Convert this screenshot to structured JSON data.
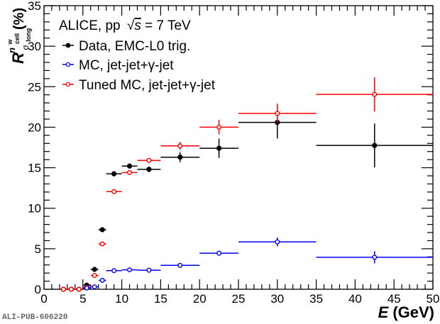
{
  "chart_data": {
    "type": "scatter",
    "title": "",
    "xlabel_var": "E",
    "xlabel_unit": "(GeV)",
    "ylabel_main": "R",
    "ylabel_sup": "n",
    "ylabel_sup_sup": "w",
    "ylabel_sup_sub": "cell",
    "ylabel_sub": "σ",
    "ylabel_sub_sub": "long",
    "ylabel_unit": "(%)",
    "xlim": [
      0,
      50
    ],
    "ylim": [
      0,
      35
    ],
    "xticks": [
      0,
      5,
      10,
      15,
      20,
      25,
      30,
      35,
      40,
      45,
      50
    ],
    "yticks": [
      0,
      5,
      10,
      15,
      20,
      25,
      30,
      35
    ],
    "x_minor_step": 1,
    "y_minor_step": 1,
    "grid": false,
    "legend_position": "top-left",
    "header": {
      "prefix": "ALICE, pp ",
      "sqrt": "√",
      "s": "s",
      "suffix": " = 7 TeV"
    },
    "series": [
      {
        "name": "Data, EMC-L0 trig.",
        "color": "#000000",
        "marker": "filled-circle",
        "points": [
          {
            "x": 2.5,
            "xerr": 0.5,
            "y": 0.0,
            "yerr": 0.05
          },
          {
            "x": 3.5,
            "xerr": 0.5,
            "y": 0.0,
            "yerr": 0.05
          },
          {
            "x": 4.5,
            "xerr": 0.5,
            "y": 0.0,
            "yerr": 0.05
          },
          {
            "x": 5.5,
            "xerr": 0.5,
            "y": 0.5,
            "yerr": 0.1
          },
          {
            "x": 6.5,
            "xerr": 0.5,
            "y": 2.45,
            "yerr": 0.15
          },
          {
            "x": 7.5,
            "xerr": 0.5,
            "y": 7.35,
            "yerr": 0.2
          },
          {
            "x": 9.0,
            "xerr": 1.0,
            "y": 14.25,
            "yerr": 0.2
          },
          {
            "x": 11.0,
            "xerr": 1.0,
            "y": 15.2,
            "yerr": 0.25
          },
          {
            "x": 13.5,
            "xerr": 1.5,
            "y": 14.8,
            "yerr": 0.35
          },
          {
            "x": 17.5,
            "xerr": 2.5,
            "y": 16.3,
            "yerr": 0.6
          },
          {
            "x": 22.5,
            "xerr": 2.5,
            "y": 17.4,
            "yerr": 1.2
          },
          {
            "x": 30.0,
            "xerr": 5.0,
            "y": 20.6,
            "yerr": 2.0
          },
          {
            "x": 42.5,
            "xerr": 7.5,
            "y": 17.75,
            "yerr": 2.7
          }
        ]
      },
      {
        "name": "MC, jet-jet+γ-jet",
        "color": "#0000ff",
        "marker": "open-circle",
        "points": [
          {
            "x": 5.5,
            "xerr": 0.5,
            "y": 0.15,
            "yerr": 0.05
          },
          {
            "x": 6.5,
            "xerr": 0.5,
            "y": 0.3,
            "yerr": 0.05
          },
          {
            "x": 7.5,
            "xerr": 0.5,
            "y": 1.1,
            "yerr": 0.1
          },
          {
            "x": 9.0,
            "xerr": 1.0,
            "y": 2.3,
            "yerr": 0.1
          },
          {
            "x": 11.0,
            "xerr": 1.0,
            "y": 2.4,
            "yerr": 0.1
          },
          {
            "x": 13.5,
            "xerr": 1.5,
            "y": 2.35,
            "yerr": 0.1
          },
          {
            "x": 17.5,
            "xerr": 2.5,
            "y": 2.95,
            "yerr": 0.15
          },
          {
            "x": 22.5,
            "xerr": 2.5,
            "y": 4.45,
            "yerr": 0.3
          },
          {
            "x": 30.0,
            "xerr": 5.0,
            "y": 5.85,
            "yerr": 0.55
          },
          {
            "x": 42.5,
            "xerr": 7.5,
            "y": 3.95,
            "yerr": 0.75
          }
        ]
      },
      {
        "name": "Tuned MC, jet-jet+γ-jet",
        "color": "#ff0000",
        "marker": "open-circle",
        "points": [
          {
            "x": 2.5,
            "xerr": 0.5,
            "y": 0.0,
            "yerr": 0.05
          },
          {
            "x": 3.5,
            "xerr": 0.5,
            "y": 0.0,
            "yerr": 0.05
          },
          {
            "x": 4.5,
            "xerr": 0.5,
            "y": 0.0,
            "yerr": 0.05
          },
          {
            "x": 5.5,
            "xerr": 0.5,
            "y": 0.25,
            "yerr": 0.05
          },
          {
            "x": 6.5,
            "xerr": 0.5,
            "y": 1.7,
            "yerr": 0.1
          },
          {
            "x": 7.5,
            "xerr": 0.5,
            "y": 5.6,
            "yerr": 0.15
          },
          {
            "x": 9.0,
            "xerr": 1.0,
            "y": 12.05,
            "yerr": 0.2
          },
          {
            "x": 11.0,
            "xerr": 1.0,
            "y": 14.4,
            "yerr": 0.25
          },
          {
            "x": 13.5,
            "xerr": 1.5,
            "y": 15.9,
            "yerr": 0.3
          },
          {
            "x": 17.5,
            "xerr": 2.5,
            "y": 17.7,
            "yerr": 0.5
          },
          {
            "x": 22.5,
            "xerr": 2.5,
            "y": 20.0,
            "yerr": 0.9
          },
          {
            "x": 30.0,
            "xerr": 5.0,
            "y": 21.7,
            "yerr": 1.2
          },
          {
            "x": 42.5,
            "xerr": 7.5,
            "y": 24.05,
            "yerr": 2.1
          }
        ]
      }
    ]
  },
  "footer_id": "ALI-PUB-606220"
}
